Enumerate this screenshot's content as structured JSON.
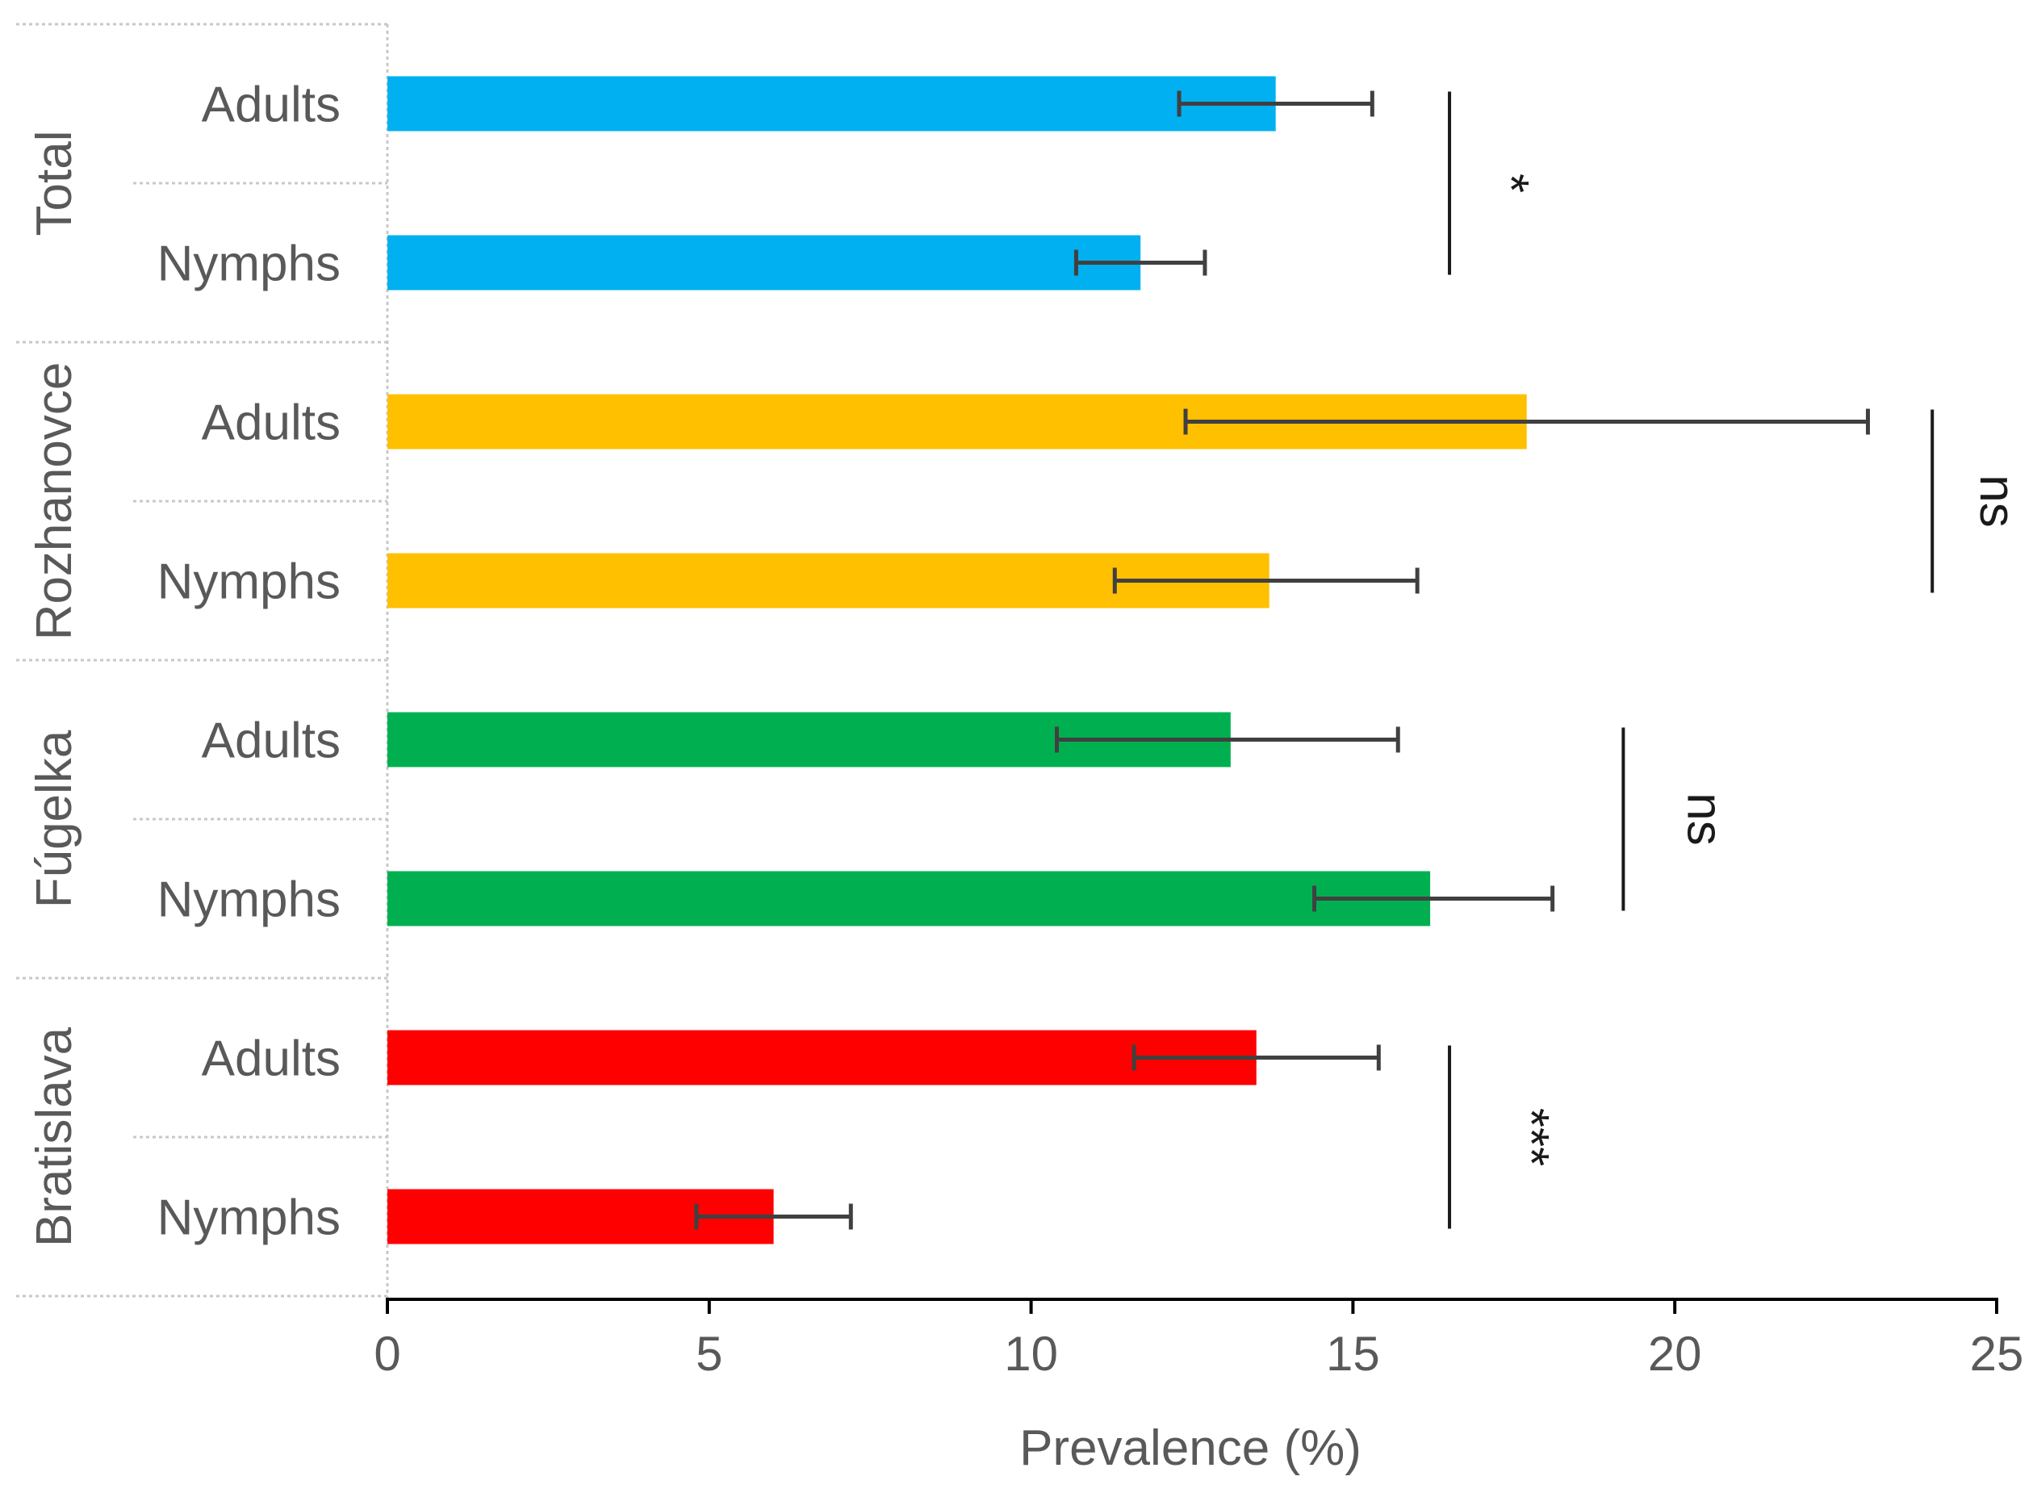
{
  "chart_data": {
    "type": "bar",
    "orientation": "horizontal",
    "title": "",
    "xlabel": "Prevalence (%)",
    "ylabel": "",
    "xlim": [
      0,
      25
    ],
    "x_ticks": [
      0,
      5,
      10,
      15,
      20,
      25
    ],
    "grid": false,
    "groups": [
      {
        "name": "Total",
        "color": "#00b0f0",
        "bars": [
          {
            "label": "Adults",
            "value": 13.8,
            "err_low": 12.3,
            "err_high": 15.3
          },
          {
            "label": "Nymphs",
            "value": 11.7,
            "err_low": 10.7,
            "err_high": 12.7
          }
        ],
        "significance": "*"
      },
      {
        "name": "Rozhanovce",
        "color": "#ffc000",
        "bars": [
          {
            "label": "Adults",
            "value": 17.7,
            "err_low": 12.4,
            "err_high": 23.0
          },
          {
            "label": "Nymphs",
            "value": 13.7,
            "err_low": 11.3,
            "err_high": 16.0
          }
        ],
        "significance": "ns"
      },
      {
        "name": "Fúgelka",
        "color": "#00b050",
        "bars": [
          {
            "label": "Adults",
            "value": 13.1,
            "err_low": 10.4,
            "err_high": 15.7
          },
          {
            "label": "Nymphs",
            "value": 16.2,
            "err_low": 14.4,
            "err_high": 18.1
          }
        ],
        "significance": "ns"
      },
      {
        "name": "Bratislava",
        "color": "#ff0000",
        "bars": [
          {
            "label": "Adults",
            "value": 13.5,
            "err_low": 11.6,
            "err_high": 15.4
          },
          {
            "label": "Nymphs",
            "value": 6.0,
            "err_low": 4.8,
            "err_high": 7.2
          }
        ],
        "significance": "***"
      }
    ]
  }
}
